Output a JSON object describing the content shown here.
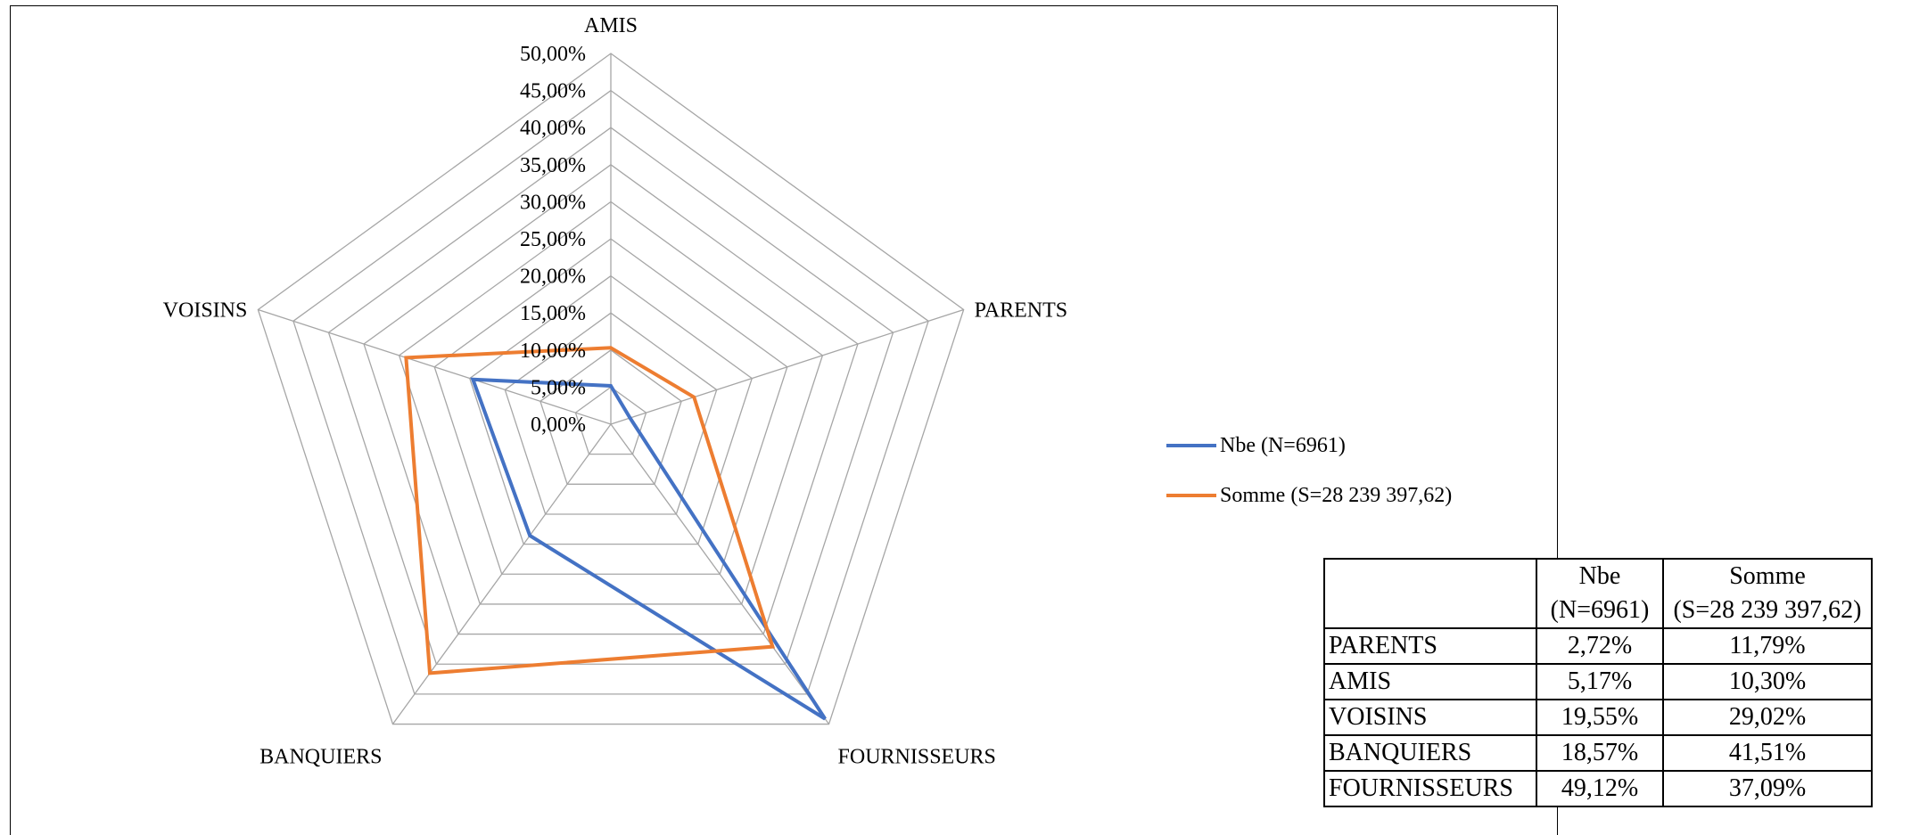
{
  "chart_data": {
    "type": "radar",
    "axes": [
      "AMIS",
      "PARENTS",
      "FOURNISSEURS",
      "BANQUIERS",
      "VOISINS"
    ],
    "ticks": [
      "0,00%",
      "5,00%",
      "10,00%",
      "15,00%",
      "20,00%",
      "25,00%",
      "30,00%",
      "35,00%",
      "40,00%",
      "45,00%",
      "50,00%"
    ],
    "rmin": 0,
    "rmax": 50,
    "series": [
      {
        "name": "Nbe (N=6961)",
        "color": "#4472C4",
        "values": [
          5.17,
          2.72,
          49.12,
          18.57,
          19.55
        ]
      },
      {
        "name": "Somme (S=28 239 397,62)",
        "color": "#ED7D31",
        "values": [
          10.3,
          11.79,
          37.09,
          41.51,
          29.02
        ]
      }
    ],
    "legend": "right"
  },
  "table": {
    "headers": [
      {
        "line1": "",
        "line2": ""
      },
      {
        "line1": "Nbe",
        "line2": "(N=6961)"
      },
      {
        "line1": "Somme",
        "line2": "(S=28 239 397,62)"
      }
    ],
    "rows": [
      {
        "label": "PARENTS",
        "nbe": "2,72%",
        "somme": "11,79%"
      },
      {
        "label": "AMIS",
        "nbe": "5,17%",
        "somme": "10,30%"
      },
      {
        "label": "VOISINS",
        "nbe": "19,55%",
        "somme": "29,02%"
      },
      {
        "label": "BANQUIERS",
        "nbe": "18,57%",
        "somme": "41,51%"
      },
      {
        "label": "FOURNISSEURS",
        "nbe": "49,12%",
        "somme": "37,09%"
      }
    ]
  }
}
